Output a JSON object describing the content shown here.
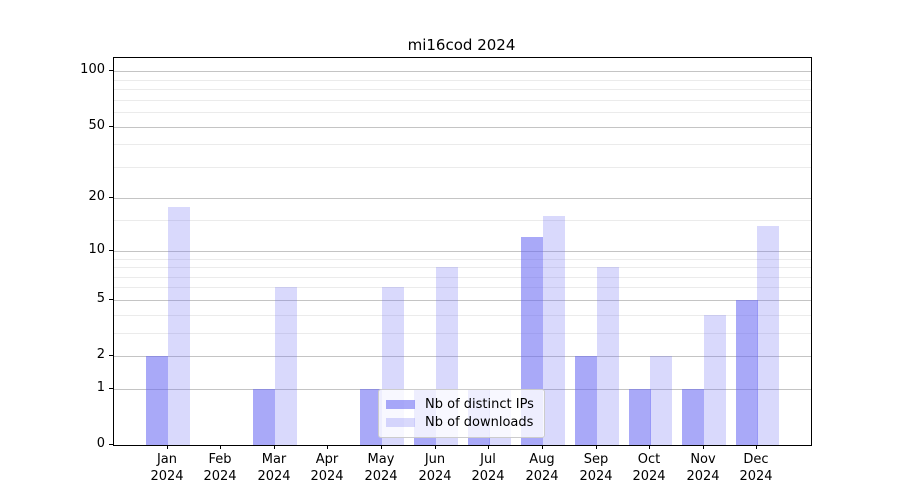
{
  "title": "mi16cod 2024",
  "chart_data": {
    "type": "bar",
    "title": "mi16cod 2024",
    "categories": [
      "Jan 2024",
      "Feb 2024",
      "Mar 2024",
      "Apr 2024",
      "May 2024",
      "Jun 2024",
      "Jul 2024",
      "Aug 2024",
      "Sep 2024",
      "Oct 2024",
      "Nov 2024",
      "Dec 2024"
    ],
    "x_tick_labels": [
      {
        "month": "Jan",
        "year": "2024"
      },
      {
        "month": "Feb",
        "year": "2024"
      },
      {
        "month": "Mar",
        "year": "2024"
      },
      {
        "month": "Apr",
        "year": "2024"
      },
      {
        "month": "May",
        "year": "2024"
      },
      {
        "month": "Jun",
        "year": "2024"
      },
      {
        "month": "Jul",
        "year": "2024"
      },
      {
        "month": "Aug",
        "year": "2024"
      },
      {
        "month": "Sep",
        "year": "2024"
      },
      {
        "month": "Oct",
        "year": "2024"
      },
      {
        "month": "Nov",
        "year": "2024"
      },
      {
        "month": "Dec",
        "year": "2024"
      }
    ],
    "series": [
      {
        "name": "Nb of distinct IPs",
        "color": "#6666f2",
        "alpha": 0.56,
        "values": [
          2,
          0,
          1,
          0,
          1,
          1,
          1,
          12,
          2,
          1,
          1,
          5
        ]
      },
      {
        "name": "Nb of downloads",
        "color": "#6666f2",
        "alpha": 0.25,
        "values": [
          18,
          0,
          6,
          0,
          6,
          8,
          1,
          16,
          8,
          2,
          4,
          14
        ]
      }
    ],
    "y_axis": {
      "scale": "log1p",
      "major_ticks": [
        0,
        1,
        2,
        5,
        10,
        20,
        50,
        100
      ],
      "minor_ticks": [
        3,
        4,
        6,
        7,
        8,
        9,
        15,
        30,
        40,
        60,
        70,
        80,
        90
      ],
      "max": 118
    },
    "grid": true,
    "legend_position": "inside-bottom-center",
    "colors": {
      "axis": "#000000",
      "major_grid": "#c4c4c4",
      "minor_grid": "#ebebeb"
    }
  }
}
